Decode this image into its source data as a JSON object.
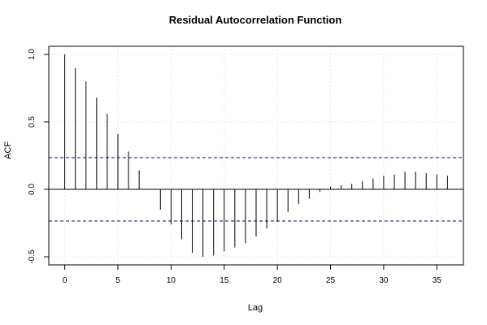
{
  "chart_data": {
    "type": "bar",
    "title": "Residual Autocorrelation Function",
    "xlabel": "Lag",
    "ylabel": "ACF",
    "x": [
      0,
      1,
      2,
      3,
      4,
      5,
      6,
      7,
      8,
      9,
      10,
      11,
      12,
      13,
      14,
      15,
      16,
      17,
      18,
      19,
      20,
      21,
      22,
      23,
      24,
      25,
      26,
      27,
      28,
      29,
      30,
      31,
      32,
      33,
      34,
      35,
      36
    ],
    "values": [
      1.0,
      0.9,
      0.8,
      0.68,
      0.56,
      0.41,
      0.28,
      0.14,
      0.0,
      -0.15,
      -0.26,
      -0.37,
      -0.47,
      -0.5,
      -0.49,
      -0.46,
      -0.43,
      -0.4,
      -0.35,
      -0.29,
      -0.24,
      -0.17,
      -0.11,
      -0.07,
      -0.02,
      0.02,
      0.03,
      0.04,
      0.06,
      0.08,
      0.1,
      0.11,
      0.13,
      0.13,
      0.12,
      0.11,
      0.1
    ],
    "confidence_bounds": [
      0.235,
      -0.235
    ],
    "xlim": [
      -1.5,
      37.5
    ],
    "ylim": [
      -0.56,
      1.06
    ],
    "x_ticks": [
      0,
      5,
      10,
      15,
      20,
      25,
      30,
      35
    ],
    "y_ticks": [
      -0.5,
      0.0,
      0.5,
      1.0
    ],
    "x_tick_labels": [
      "0",
      "5",
      "10",
      "15",
      "20",
      "25",
      "30",
      "35"
    ],
    "y_tick_labels": [
      "-0.5",
      "0.0",
      "0.5",
      "1.0"
    ],
    "grid": true,
    "colors": {
      "spike": "#000000",
      "confidence": "#00008b",
      "grid": "#d3d3d3"
    }
  }
}
